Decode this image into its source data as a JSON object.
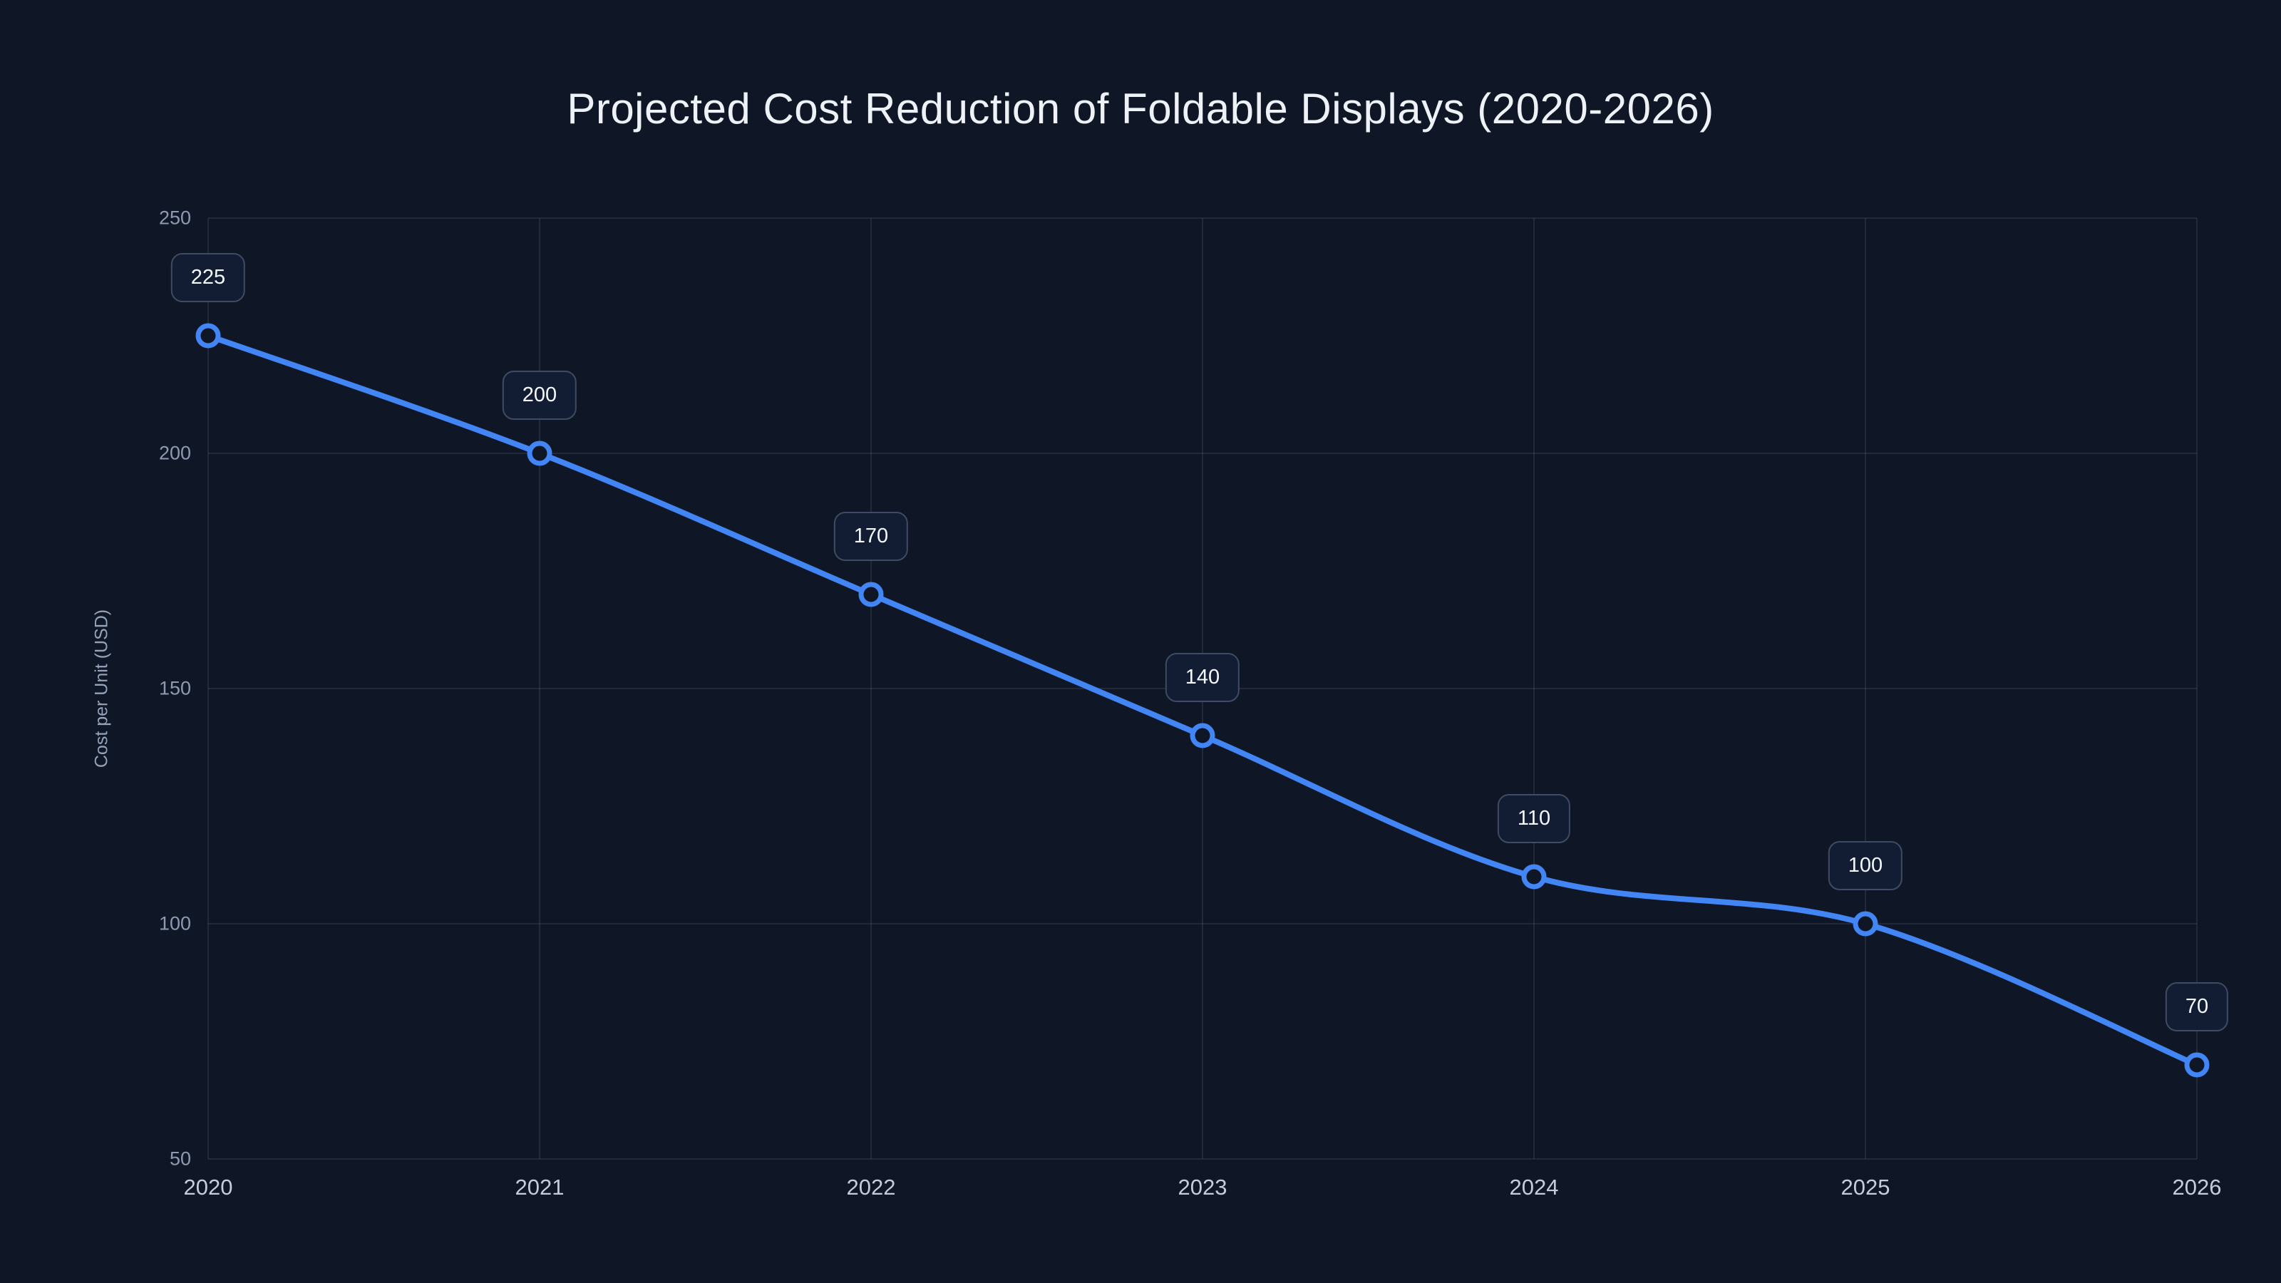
{
  "chart_data": {
    "type": "line",
    "title": "Projected Cost Reduction of Foldable Displays (2020-2026)",
    "xlabel": "",
    "ylabel": "Cost per Unit (USD)",
    "x": [
      "2020",
      "2021",
      "2022",
      "2023",
      "2024",
      "2025",
      "2026"
    ],
    "series": [
      {
        "name": "Cost per Unit (USD)",
        "values": [
          225,
          200,
          170,
          140,
          110,
          100,
          70
        ]
      }
    ],
    "data_labels": [
      "225",
      "200",
      "170",
      "140",
      "110",
      "100",
      "70"
    ],
    "ylim": [
      50,
      250
    ],
    "yticks": [
      250,
      200,
      150,
      100,
      50
    ],
    "grid": true,
    "legend": "none",
    "smooth": true
  },
  "colors": {
    "background": "#0f1626",
    "line": "#4285f4",
    "point_fill": "#0f1626",
    "point_stroke": "#4285f4",
    "grid": "rgba(148, 163, 184, 0.14)",
    "title_text": "#eef2f7",
    "x_tick_text": "#c3cddc",
    "y_tick_text": "#8d9ab0",
    "badge_bg": "#121d33",
    "badge_border": "#3e4b63",
    "badge_text": "#f4f7fb"
  }
}
